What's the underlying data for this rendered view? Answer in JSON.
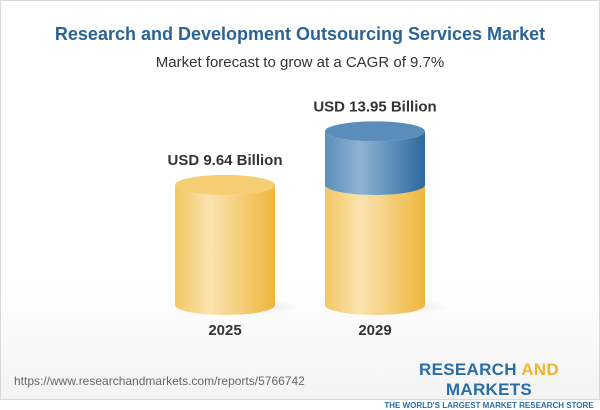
{
  "chart_data": {
    "type": "bar",
    "style": "3d-cylinder",
    "title": "Research and Development Outsourcing Services Market",
    "subtitle": "Market forecast to grow at a CAGR of 9.7%",
    "categories": [
      "2025",
      "2029"
    ],
    "values": [
      9.64,
      13.95
    ],
    "data_labels": [
      "USD 9.64 Billion",
      "USD 13.95 Billion"
    ],
    "unit": "USD Billion",
    "colors": {
      "base": "#f2c35a",
      "growth": "#4a85b5",
      "title": "#2a6496"
    }
  },
  "footer": {
    "url": "https://www.researchandmarkets.com/reports/5766742",
    "logo_part1": "RESEARCH ",
    "logo_part2": "AND",
    "logo_part3": " MARKETS",
    "tagline": "THE WORLD'S LARGEST MARKET RESEARCH STORE"
  }
}
